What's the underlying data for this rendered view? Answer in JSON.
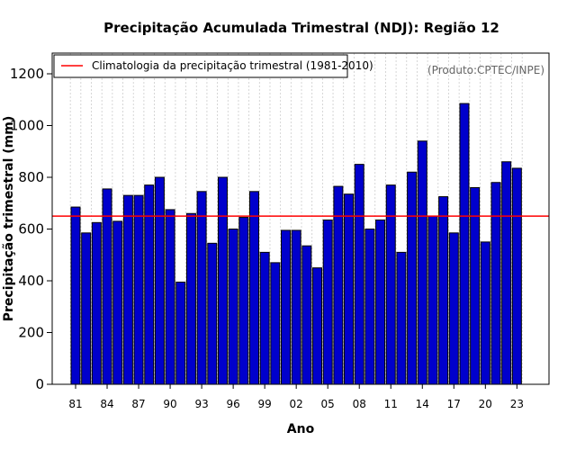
{
  "chart_data": {
    "type": "bar",
    "title": "Precipitação Acumulada Trimestral (NDJ): Região 12",
    "xlabel": "Ano",
    "ylabel": "Precipitação trimestral (mm)",
    "ylim": [
      0,
      1280
    ],
    "yticks": [
      0,
      200,
      400,
      600,
      800,
      1000,
      1200
    ],
    "xtick_labels": [
      "81",
      "84",
      "87",
      "90",
      "93",
      "96",
      "99",
      "02",
      "05",
      "08",
      "11",
      "14",
      "17",
      "20",
      "23"
    ],
    "grid": true,
    "years": [
      1981,
      1982,
      1983,
      1984,
      1985,
      1986,
      1987,
      1988,
      1989,
      1990,
      1991,
      1992,
      1993,
      1994,
      1995,
      1996,
      1997,
      1998,
      1999,
      2000,
      2001,
      2002,
      2003,
      2004,
      2005,
      2006,
      2007,
      2008,
      2009,
      2010,
      2011,
      2012,
      2013,
      2014,
      2015,
      2016,
      2017,
      2018,
      2019,
      2020,
      2021,
      2022,
      2023
    ],
    "values": [
      685,
      585,
      625,
      755,
      630,
      730,
      730,
      770,
      800,
      675,
      395,
      660,
      745,
      545,
      800,
      600,
      645,
      745,
      510,
      470,
      595,
      595,
      535,
      450,
      635,
      765,
      735,
      850,
      600,
      635,
      770,
      510,
      820,
      940,
      650,
      725,
      585,
      1085,
      760,
      550,
      780,
      860,
      835
    ],
    "climatology": {
      "label": "Climatologia da precipitação trimestral (1981-2010)",
      "value": 650,
      "color": "#ff0000"
    },
    "legend_position": "top-left",
    "credit": "(Produto:CPTEC/INPE)",
    "bar_color": "#0000cc"
  }
}
